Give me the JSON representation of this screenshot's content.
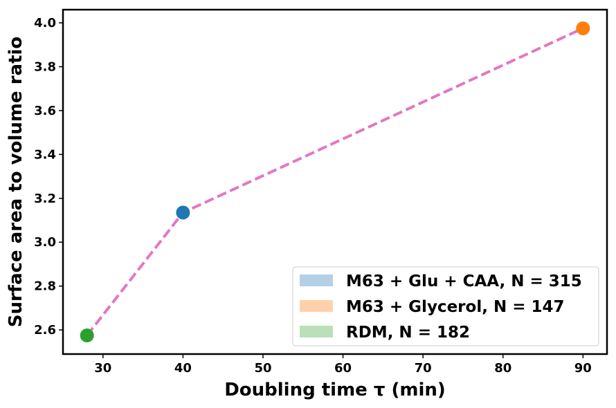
{
  "chart_data": {
    "type": "scatter",
    "xlabel": "Doubling time τ (min)",
    "ylabel": "Surface area to volume ratio",
    "xlim": [
      25,
      93
    ],
    "ylim": [
      2.49,
      4.06
    ],
    "xticks": [
      30,
      40,
      50,
      60,
      70,
      80,
      90
    ],
    "yticks": [
      2.6,
      2.8,
      3.0,
      3.2,
      3.4,
      3.6,
      3.8,
      4.0
    ],
    "xtick_labels": [
      "30",
      "40",
      "50",
      "60",
      "70",
      "80",
      "90"
    ],
    "ytick_labels": [
      "2.6",
      "2.8",
      "3.0",
      "3.2",
      "3.4",
      "3.6",
      "3.8",
      "4.0"
    ],
    "grid": false,
    "legend_position": "lower-right",
    "series": [
      {
        "name": "M63 + Glu + CAA, N = 315",
        "x": 40,
        "y": 3.135,
        "color": "#1f77b4",
        "legend_color": "#b3d0e6"
      },
      {
        "name": "M63 + Glycerol, N = 147",
        "x": 90,
        "y": 3.975,
        "color": "#ff7f0e",
        "legend_color": "#ffd1aa"
      },
      {
        "name": "RDM, N = 182",
        "x": 28,
        "y": 2.575,
        "color": "#2ca02c",
        "legend_color": "#b9e0b9"
      }
    ],
    "trend_line": {
      "x": [
        28,
        40,
        90
      ],
      "y": [
        2.575,
        3.135,
        3.975
      ],
      "color": "#e377c2",
      "style": "dashed"
    }
  }
}
